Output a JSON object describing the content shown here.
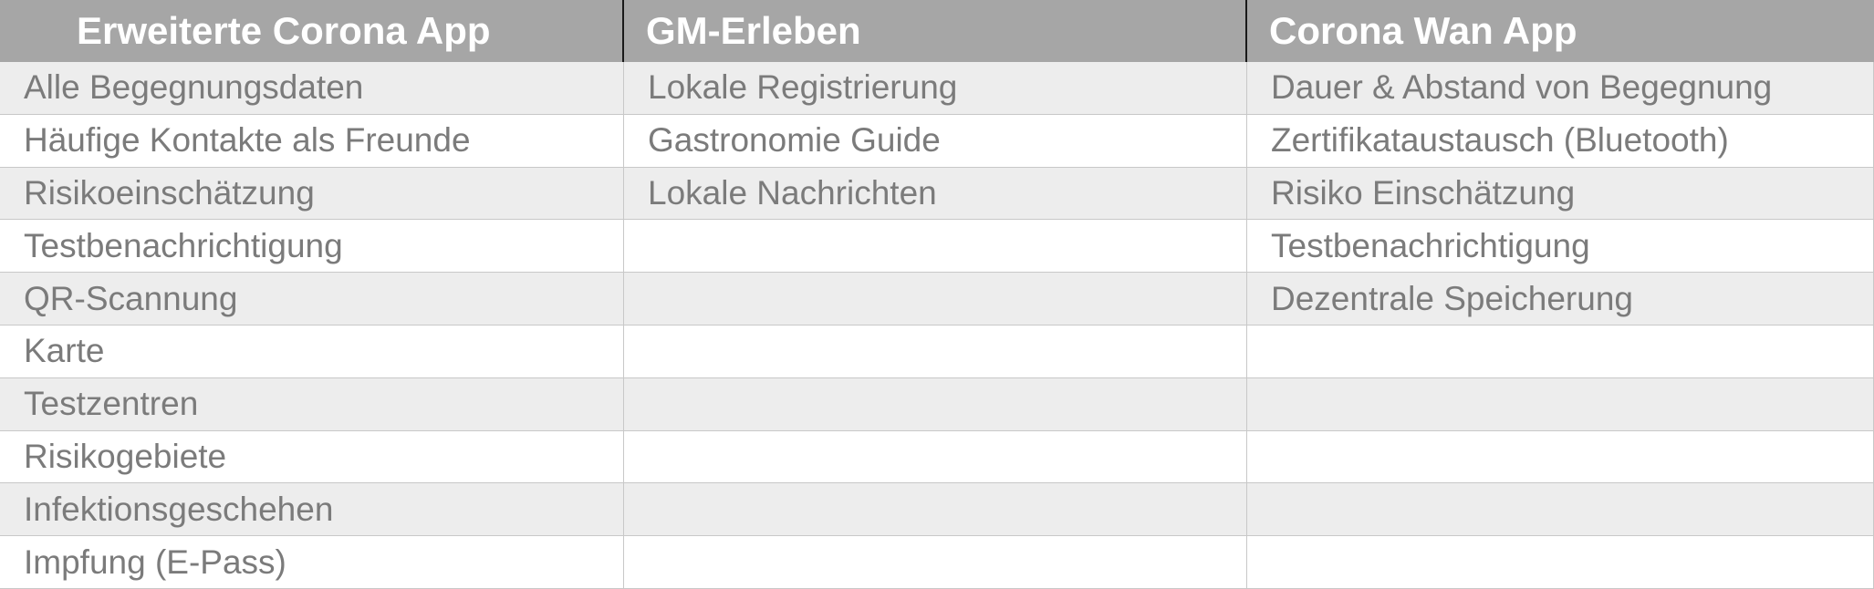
{
  "headers": [
    "Erweiterte Corona App",
    "GM-Erleben",
    "Corona Wan App"
  ],
  "rows": [
    [
      "Alle Begegnungsdaten",
      "Lokale Registrierung",
      "Dauer & Abstand von Begegnung"
    ],
    [
      "Häufige Kontakte als Freunde",
      "Gastronomie Guide",
      "Zertifikataustausch (Bluetooth)"
    ],
    [
      "Risikoeinschätzung",
      "Lokale Nachrichten",
      "Risiko Einschätzung"
    ],
    [
      "Testbenachrichtigung",
      "",
      "Testbenachrichtigung"
    ],
    [
      "QR-Scannung",
      "",
      "Dezentrale Speicherung"
    ],
    [
      "Karte",
      "",
      ""
    ],
    [
      "Testzentren",
      "",
      ""
    ],
    [
      "Risikogebiete",
      "",
      ""
    ],
    [
      "Infektionsgeschehen",
      "",
      ""
    ],
    [
      "Impfung (E-Pass)",
      "",
      ""
    ]
  ],
  "colors": {
    "header_bg": "#a6a6a6",
    "header_text": "#ffffff",
    "shaded_row": "#ededed",
    "plain_row": "#ffffff",
    "cell_text": "#7b7b7b",
    "grid_line": "#c8c8c8"
  }
}
